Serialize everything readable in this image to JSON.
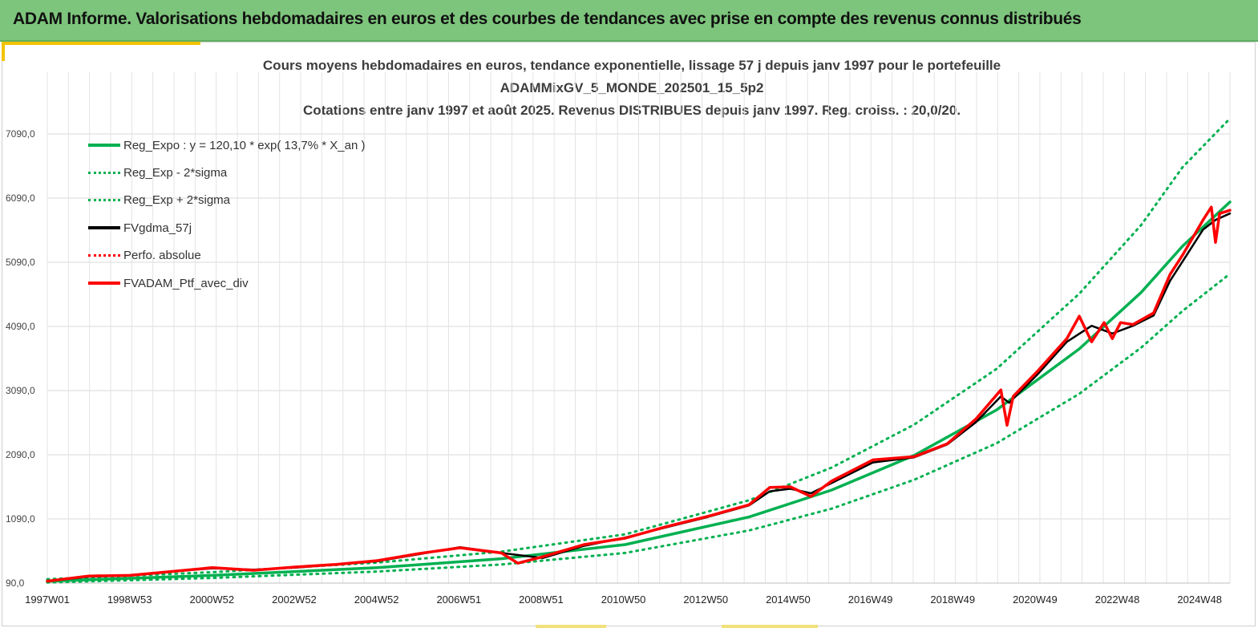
{
  "banner": {
    "title": "ADAM Informe. Valorisations hebdomadaires en euros et des courbes de tendances avec prise en compte des revenus connus distribués"
  },
  "colors": {
    "banner_bg": "#7dc57c",
    "accent": "#f2c200",
    "trend": "#00b050",
    "smoothed": "#000000",
    "portfolio": "#ff0000"
  },
  "chart_data": {
    "type": "line",
    "title_lines": [
      "Cours moyens hebdomadaires  en euros, tendance exponentielle, lissage 57 j depuis janv 1997 pour le portefeuille",
      "ADAMMixGV_5_MONDE_202501_15_5p2",
      "Cotations  entre janv 1997 et août 2025. Revenus DISTRIBUES depuis janv 1997. Reg. croiss. : 20,0/20."
    ],
    "x_tick_labels": [
      "1997W01",
      "1998W53",
      "2000W52",
      "2002W52",
      "2004W52",
      "2006W51",
      "2008W51",
      "2010W50",
      "2012W50",
      "2014W50",
      "2016W49",
      "2018W49",
      "2020W49",
      "2022W48",
      "2024W48"
    ],
    "y_tick_labels": [
      "90,0",
      "1090,0",
      "2090,0",
      "3090,0",
      "4090,0",
      "5090,0",
      "6090,0",
      "7090,0"
    ],
    "ylim": [
      90,
      7090
    ],
    "xlim": [
      1997.0,
      2025.65
    ],
    "grid": true,
    "legend_position": "top-left",
    "legend": [
      {
        "label": "Reg_Expo : y = 120,10 * exp( 13,7% *  X_an )",
        "style": "solid",
        "color": "#00b050"
      },
      {
        "label": "Reg_Exp - 2*sigma",
        "style": "dotted",
        "color": "#00b050"
      },
      {
        "label": "Reg_Exp + 2*sigma",
        "style": "dotted",
        "color": "#00b050"
      },
      {
        "label": "FVgdma_57j",
        "style": "solid",
        "color": "#000000"
      },
      {
        "label": "Perfo. absolue",
        "style": "dotted",
        "color": "#ff0000"
      },
      {
        "label": "FVADAM_Ptf_avec_div",
        "style": "solid",
        "color": "#ff0000"
      }
    ],
    "series": [
      {
        "name": "Reg_Expo : y = 120,10 * exp( 13,7% *  X_an )",
        "x": [
          1997.0,
          2001.0,
          2005.0,
          2008.0,
          2011.0,
          2014.0,
          2016.0,
          2018.0,
          2020.0,
          2022.0,
          2023.5,
          2024.5,
          2025.65
        ],
        "y": [
          120,
          210,
          330,
          470,
          690,
          1120,
          1540,
          2080,
          2790,
          3740,
          4620,
          5340,
          6030
        ]
      },
      {
        "name": "Reg_Exp - 2*sigma",
        "x": [
          1997.0,
          2001.0,
          2005.0,
          2008.0,
          2011.0,
          2014.0,
          2016.0,
          2018.0,
          2020.0,
          2022.0,
          2023.5,
          2024.5,
          2025.65
        ],
        "y": [
          100,
          170,
          270,
          380,
          560,
          910,
          1250,
          1700,
          2270,
          3040,
          3760,
          4330,
          4910
        ]
      },
      {
        "name": "Reg_Exp + 2*sigma",
        "x": [
          1997.0,
          2001.0,
          2005.0,
          2008.0,
          2011.0,
          2014.0,
          2016.0,
          2018.0,
          2020.0,
          2022.0,
          2023.5,
          2024.5,
          2025.65
        ],
        "y": [
          150,
          260,
          410,
          580,
          850,
          1380,
          1890,
          2560,
          3430,
          4600,
          5670,
          6570,
          7330
        ]
      },
      {
        "name": "FVgdma_57j",
        "x": [
          1997.0,
          1998.0,
          1999.0,
          2000.0,
          2001.0,
          2002.0,
          2003.0,
          2004.0,
          2005.0,
          2006.0,
          2007.0,
          2008.0,
          2009.0,
          2010.0,
          2011.0,
          2012.0,
          2013.0,
          2014.0,
          2014.5,
          2015.0,
          2015.5,
          2016.0,
          2017.0,
          2018.0,
          2018.8,
          2019.5,
          2020.1,
          2020.3,
          2021.0,
          2021.7,
          2022.3,
          2022.8,
          2023.3,
          2023.8,
          2024.2,
          2024.5,
          2025.0,
          2025.3,
          2025.65
        ],
        "y": [
          120,
          190,
          210,
          270,
          320,
          300,
          330,
          380,
          430,
          540,
          650,
          560,
          480,
          670,
          800,
          960,
          1120,
          1300,
          1520,
          1560,
          1490,
          1650,
          1970,
          2050,
          2250,
          2600,
          3000,
          2900,
          3350,
          3850,
          4100,
          3980,
          4100,
          4260,
          4800,
          5100,
          5600,
          5750,
          5850
        ]
      },
      {
        "name": "FVADAM_Ptf_avec_div",
        "x": [
          1997.0,
          1998.0,
          1999.0,
          2000.0,
          2001.0,
          2002.0,
          2003.0,
          2004.0,
          2005.0,
          2006.0,
          2007.0,
          2008.0,
          2008.4,
          2009.0,
          2010.0,
          2011.0,
          2012.0,
          2013.0,
          2014.0,
          2014.5,
          2015.0,
          2015.5,
          2016.0,
          2017.0,
          2018.0,
          2018.8,
          2019.5,
          2020.1,
          2020.25,
          2020.4,
          2021.0,
          2021.7,
          2022.0,
          2022.3,
          2022.6,
          2022.8,
          2023.0,
          2023.3,
          2023.8,
          2024.2,
          2024.5,
          2025.0,
          2025.2,
          2025.3,
          2025.4,
          2025.65
        ],
        "y": [
          120,
          200,
          210,
          270,
          330,
          290,
          340,
          380,
          440,
          550,
          640,
          560,
          400,
          500,
          690,
          790,
          970,
          1130,
          1310,
          1580,
          1590,
          1440,
          1680,
          2010,
          2060,
          2260,
          2650,
          3100,
          2550,
          3000,
          3400,
          3900,
          4250,
          3850,
          4150,
          3900,
          4150,
          4120,
          4300,
          4900,
          5200,
          5750,
          5950,
          5400,
          5850,
          5900
        ]
      }
    ]
  }
}
